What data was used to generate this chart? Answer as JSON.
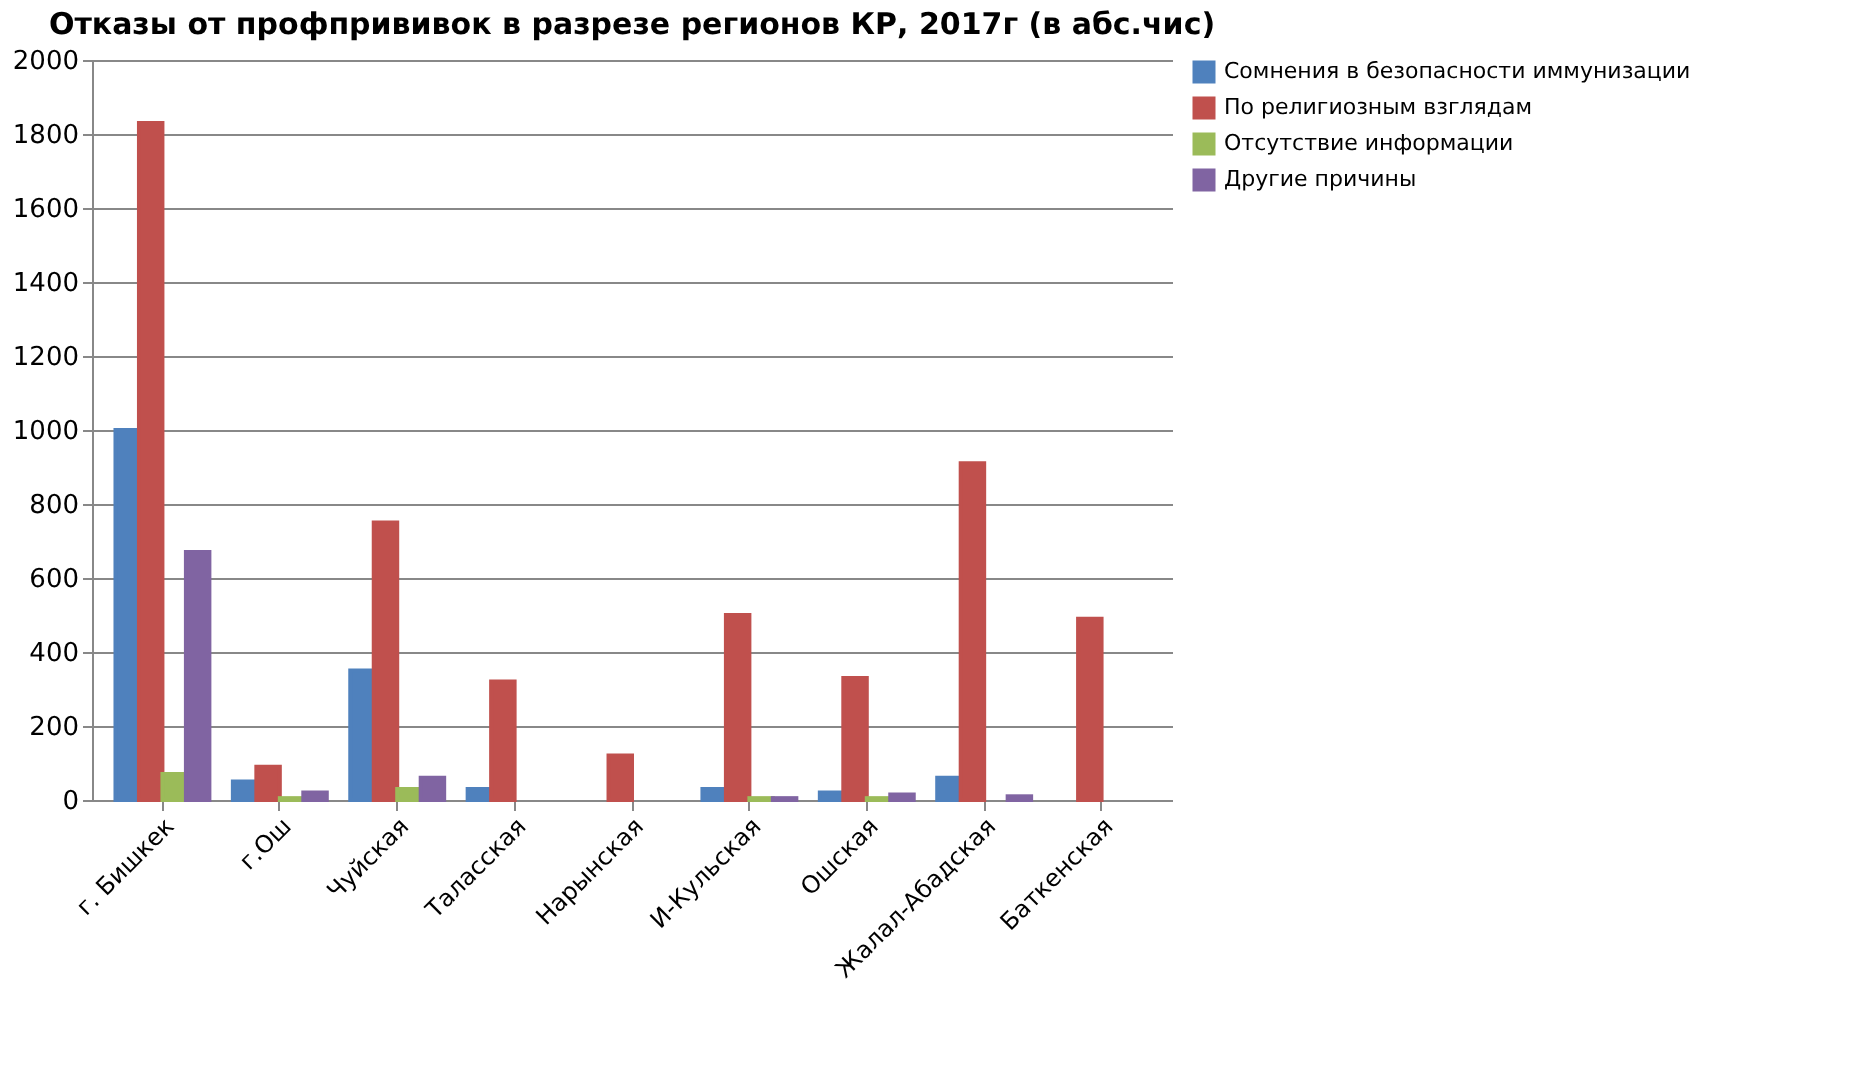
{
  "chart_data": {
    "type": "bar",
    "title": "Отказы от профпрививок в разрезе регионов КР, 2017г (в абс.чис)",
    "categories": [
      "г. Бишкек",
      "г.Ош",
      "Чуйская",
      "Таласская",
      "Нарынская",
      "И-Кульская",
      "Ошская",
      "Жалал-Абадская",
      "Баткенская"
    ],
    "series": [
      {
        "name": "Сомнения в безопасности иммунизации",
        "color": "#4f81bd",
        "values": [
          1000,
          50,
          350,
          30,
          null,
          30,
          20,
          60,
          null
        ]
      },
      {
        "name": "По религиозным взглядам",
        "color": "#c0504d",
        "values": [
          1830,
          90,
          750,
          320,
          120,
          500,
          330,
          910,
          490
        ]
      },
      {
        "name": "Отсутствие информации",
        "color": "#9bbb59",
        "values": [
          70,
          5,
          30,
          null,
          null,
          5,
          5,
          null,
          null
        ]
      },
      {
        "name": "Другие причины",
        "color": "#8064a2",
        "values": [
          670,
          20,
          60,
          null,
          null,
          5,
          15,
          10,
          null
        ]
      }
    ],
    "ylim": [
      0,
      2000
    ],
    "yticks": [
      0,
      200,
      400,
      600,
      800,
      1000,
      1200,
      1400,
      1600,
      1800,
      2000
    ],
    "grid": "y",
    "legend": "right"
  }
}
